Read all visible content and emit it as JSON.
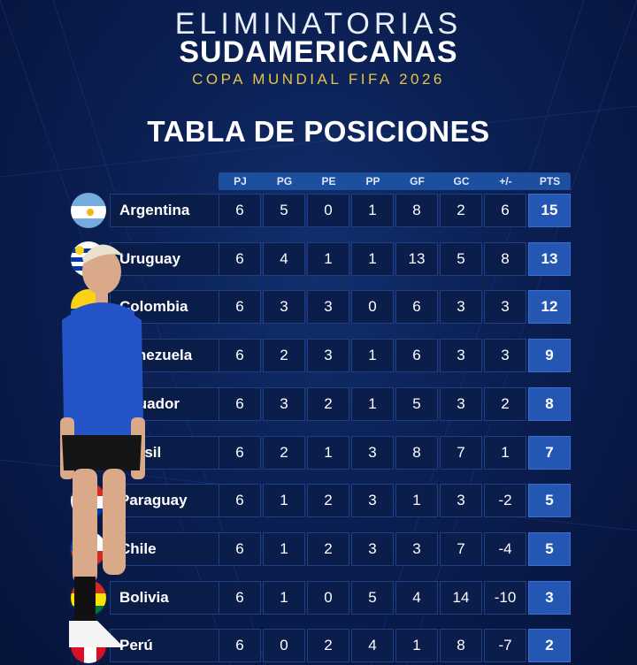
{
  "header": {
    "line1": "ELIMINATORIAS",
    "line2": "SUDAMERICANAS",
    "line3": "COPA MUNDIAL FIFA 2026"
  },
  "title": "TABLA DE POSICIONES",
  "columns": [
    "PJ",
    "PG",
    "PE",
    "PP",
    "GF",
    "GC",
    "+/-",
    "PTS"
  ],
  "rows": [
    {
      "team": "Argentina",
      "flag": "argentina-flag-icon",
      "vals": [
        "6",
        "5",
        "0",
        "1",
        "8",
        "2",
        "6",
        "15"
      ]
    },
    {
      "team": "Uruguay",
      "flag": "uruguay-flag-icon",
      "vals": [
        "6",
        "4",
        "1",
        "1",
        "13",
        "5",
        "8",
        "13"
      ]
    },
    {
      "team": "Colombia",
      "flag": "colombia-flag-icon",
      "vals": [
        "6",
        "3",
        "3",
        "0",
        "6",
        "3",
        "3",
        "12"
      ]
    },
    {
      "team": "Venezuela",
      "flag": "venezuela-flag-icon",
      "vals": [
        "6",
        "2",
        "3",
        "1",
        "6",
        "3",
        "3",
        "9"
      ]
    },
    {
      "team": "Ecuador",
      "flag": "ecuador-flag-icon",
      "vals": [
        "6",
        "3",
        "2",
        "1",
        "5",
        "3",
        "2",
        "8"
      ]
    },
    {
      "team": "Brasil",
      "flag": "brasil-flag-icon",
      "vals": [
        "6",
        "2",
        "1",
        "3",
        "8",
        "7",
        "1",
        "7"
      ]
    },
    {
      "team": "Paraguay",
      "flag": "paraguay-flag-icon",
      "vals": [
        "6",
        "1",
        "2",
        "3",
        "1",
        "3",
        "-2",
        "5"
      ]
    },
    {
      "team": "Chile",
      "flag": "chile-flag-icon",
      "vals": [
        "6",
        "1",
        "2",
        "3",
        "3",
        "7",
        "-4",
        "5"
      ]
    },
    {
      "team": "Bolivia",
      "flag": "bolivia-flag-icon",
      "vals": [
        "6",
        "1",
        "0",
        "5",
        "4",
        "14",
        "-10",
        "3"
      ]
    },
    {
      "team": "Perú",
      "flag": "peru-flag-icon",
      "vals": [
        "6",
        "0",
        "2",
        "4",
        "1",
        "8",
        "-7",
        "2"
      ]
    }
  ],
  "colors": {
    "accent": "#2457b4",
    "gold": "#e6c34a",
    "background": "#0b1f52"
  }
}
